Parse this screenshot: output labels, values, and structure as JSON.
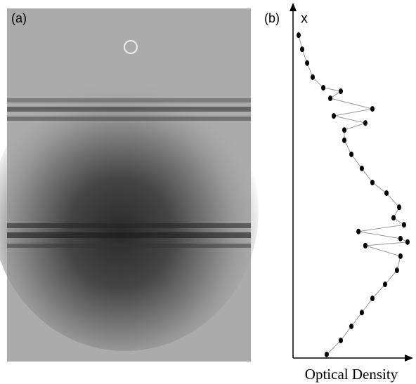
{
  "panels": [
    {
      "label": "(a)"
    },
    {
      "label": "(b)"
    }
  ],
  "chart_data": {
    "type": "line",
    "orientation": "vertical",
    "x_axis_label": "x",
    "value_axis_label": "Optical Density",
    "x": [
      91.6,
      87.6,
      83.7,
      79.7,
      76.7,
      75.7,
      73.7,
      70.7,
      68.7,
      66.7,
      64.7,
      61.8,
      57.8,
      53.8,
      49.8,
      46.8,
      42.8,
      39.8,
      37.8,
      35.9,
      33.9,
      32.9,
      31.9,
      28.9,
      24.9,
      20.9,
      16.9,
      12.9,
      9.0,
      5.0,
      1.0
    ],
    "values": [
      0.046,
      0.075,
      0.116,
      0.162,
      0.249,
      0.393,
      0.306,
      0.653,
      0.335,
      0.595,
      0.422,
      0.422,
      0.48,
      0.566,
      0.653,
      0.769,
      0.873,
      0.827,
      0.913,
      0.538,
      0.884,
      0.942,
      0.595,
      0.884,
      0.855,
      0.757,
      0.653,
      0.566,
      0.48,
      0.393,
      0.277
    ],
    "xlim": [
      0,
      100
    ],
    "ylim": [
      0,
      1
    ],
    "color": "#000000"
  }
}
